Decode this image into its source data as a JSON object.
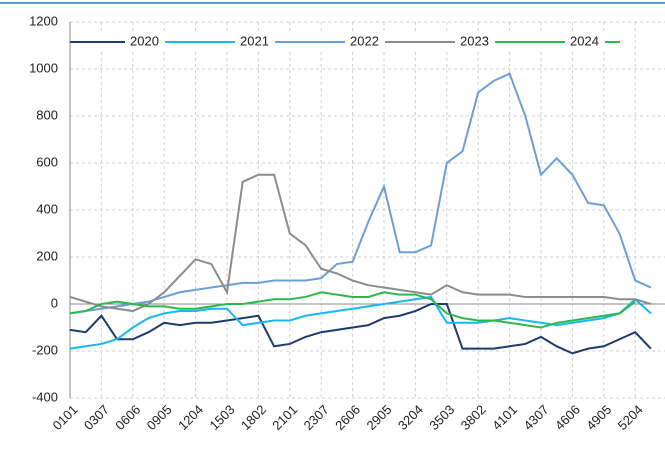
{
  "chart_data": {
    "type": "line",
    "categories": [
      "0101",
      null,
      "0307",
      null,
      "0606",
      null,
      "0905",
      null,
      "1204",
      null,
      "1503",
      null,
      "1802",
      null,
      "2101",
      null,
      "2307",
      null,
      "2606",
      null,
      "2905",
      null,
      "3204",
      null,
      "3503",
      null,
      "3802",
      null,
      "4101",
      null,
      "4307",
      null,
      "4606",
      null,
      "4905",
      null,
      "5204",
      null
    ],
    "series": [
      {
        "name": "2020",
        "color": "#1f3a6e",
        "values": [
          -110,
          -120,
          -50,
          -150,
          -150,
          -120,
          -80,
          -90,
          -80,
          -80,
          -70,
          -60,
          -50,
          -180,
          -170,
          -140,
          -120,
          -110,
          -100,
          -90,
          -60,
          -50,
          -30,
          0,
          0,
          -190,
          -190,
          -190,
          -180,
          -170,
          -140,
          -180,
          -210,
          -190,
          -180,
          -150,
          -120,
          -190
        ]
      },
      {
        "name": "2021",
        "color": "#17b8f0",
        "values": [
          -190,
          -180,
          -170,
          -150,
          -100,
          -60,
          -40,
          -30,
          -30,
          -20,
          -20,
          -90,
          -80,
          -70,
          -70,
          -50,
          -40,
          -30,
          -20,
          -10,
          0,
          10,
          20,
          30,
          -80,
          -80,
          -80,
          -70,
          -60,
          -70,
          -80,
          -90,
          -80,
          -70,
          -60,
          -40,
          20,
          -40
        ]
      },
      {
        "name": "2022",
        "color": "#6a9fd8",
        "values": [
          -40,
          -30,
          -20,
          -10,
          0,
          10,
          30,
          50,
          60,
          70,
          80,
          90,
          90,
          100,
          100,
          100,
          110,
          170,
          180,
          350,
          500,
          220,
          220,
          250,
          600,
          650,
          900,
          950,
          980,
          800,
          550,
          620,
          550,
          430,
          420,
          300,
          100,
          70
        ]
      },
      {
        "name": "2023",
        "color": "#8c8c8c",
        "values": [
          30,
          10,
          -10,
          -20,
          -30,
          0,
          50,
          120,
          190,
          170,
          50,
          520,
          550,
          550,
          300,
          250,
          150,
          130,
          100,
          80,
          70,
          60,
          50,
          40,
          80,
          50,
          40,
          40,
          40,
          30,
          30,
          30,
          30,
          30,
          30,
          20,
          20,
          0
        ]
      },
      {
        "name": "2024",
        "color": "#2db84d",
        "values": [
          -40,
          -30,
          0,
          10,
          0,
          -10,
          -10,
          -20,
          -20,
          -10,
          0,
          0,
          10,
          20,
          20,
          30,
          50,
          40,
          30,
          30,
          50,
          40,
          40,
          20,
          -40,
          -60,
          -70,
          -70,
          -80,
          -90,
          -100,
          -80,
          -70,
          -60,
          -50,
          -40,
          10,
          null
        ]
      }
    ],
    "ylim": [
      -400,
      1200
    ],
    "yticks": [
      -400,
      -200,
      0,
      200,
      400,
      600,
      800,
      1000,
      1200
    ],
    "grid": true,
    "legend": "top"
  }
}
